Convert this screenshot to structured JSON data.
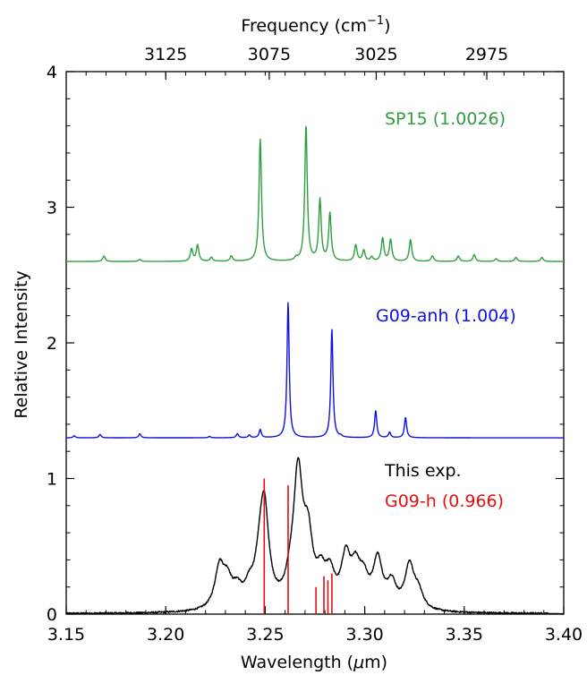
{
  "chart_data": {
    "type": "line",
    "xlabel": "Wavelength (μm)",
    "xlabel_prefix": "Wavelength (",
    "xlabel_mu": "μ",
    "xlabel_suffix": "m)",
    "ylabel": "Relative Intensity",
    "top_axis_label": "Frequency (cm⁻¹)",
    "top_axis_label_main": "Frequency (cm",
    "top_axis_label_sup": "−1",
    "top_axis_label_close": ")",
    "xlim": [
      3.15,
      3.4
    ],
    "ylim": [
      0,
      4
    ],
    "x_ticks": [
      "3.15",
      "3.20",
      "3.25",
      "3.30",
      "3.35",
      "3.40"
    ],
    "y_ticks": [
      "0",
      "1",
      "2",
      "3",
      "4"
    ],
    "top_ticks": [
      "3125",
      "3075",
      "3025",
      "2975"
    ],
    "top_tick_values": [
      3125,
      3075,
      3025,
      2975
    ],
    "series": [
      {
        "name": "SP15 (1.0026)",
        "color": "#2e9e3e",
        "baseline": 2.6,
        "peak_width": 0.00075,
        "peaks": [
          [
            3.169,
            0.04
          ],
          [
            3.187,
            0.015
          ],
          [
            3.213,
            0.09
          ],
          [
            3.216,
            0.12
          ],
          [
            3.223,
            0.03
          ],
          [
            3.233,
            0.04
          ],
          [
            3.2475,
            0.9
          ],
          [
            3.2655,
            0.02
          ],
          [
            3.2705,
            1.0
          ],
          [
            3.2775,
            0.45
          ],
          [
            3.2825,
            0.35
          ],
          [
            3.2955,
            0.12
          ],
          [
            3.2995,
            0.08
          ],
          [
            3.3035,
            0.03
          ],
          [
            3.309,
            0.17
          ],
          [
            3.313,
            0.16
          ],
          [
            3.323,
            0.16
          ],
          [
            3.334,
            0.04
          ],
          [
            3.347,
            0.04
          ],
          [
            3.355,
            0.05
          ],
          [
            3.366,
            0.02
          ],
          [
            3.376,
            0.03
          ],
          [
            3.389,
            0.03
          ]
        ],
        "label_text": "SP15 (1.0026)"
      },
      {
        "name": "G09-anh (1.004)",
        "color": "#1010e0",
        "baseline": 1.3,
        "peak_width": 0.00065,
        "peaks": [
          [
            3.154,
            0.015
          ],
          [
            3.167,
            0.025
          ],
          [
            3.187,
            0.03
          ],
          [
            3.222,
            0.01
          ],
          [
            3.236,
            0.03
          ],
          [
            3.242,
            0.02
          ],
          [
            3.2475,
            0.06
          ],
          [
            3.2615,
            1.0
          ],
          [
            3.2835,
            0.8
          ],
          [
            3.288,
            0.01
          ],
          [
            3.3055,
            0.2
          ],
          [
            3.3125,
            0.04
          ],
          [
            3.3205,
            0.15
          ]
        ],
        "label_text": "G09-anh (1.004)"
      },
      {
        "name": "This exp.",
        "color": "#000000",
        "baseline": 0.0,
        "peak_width": 0.0028,
        "noise": 0.012,
        "noise_range": [
          3.15,
          3.392
        ],
        "peaks": [
          [
            3.227,
            0.3
          ],
          [
            3.231,
            0.18
          ],
          [
            3.236,
            0.12
          ],
          [
            3.242,
            0.12
          ],
          [
            3.247,
            0.2
          ],
          [
            3.2495,
            0.72
          ],
          [
            3.2625,
            0.12
          ],
          [
            3.2665,
            0.95
          ],
          [
            3.2715,
            0.45
          ],
          [
            3.278,
            0.2
          ],
          [
            3.2825,
            0.22
          ],
          [
            3.2905,
            0.35
          ],
          [
            3.2955,
            0.25
          ],
          [
            3.2995,
            0.18
          ],
          [
            3.3065,
            0.35
          ],
          [
            3.3135,
            0.18
          ],
          [
            3.3225,
            0.32
          ],
          [
            3.327,
            0.12
          ]
        ],
        "label_text": "This exp."
      }
    ],
    "sticks": {
      "name": "G09-h (0.966)",
      "color": "#e01010",
      "label_text": "G09-h (0.966)",
      "lines": [
        [
          3.2495,
          1.0
        ],
        [
          3.2615,
          0.95
        ],
        [
          3.2755,
          0.2
        ],
        [
          3.2795,
          0.28
        ],
        [
          3.2815,
          0.25
        ],
        [
          3.2835,
          0.3
        ]
      ]
    }
  }
}
